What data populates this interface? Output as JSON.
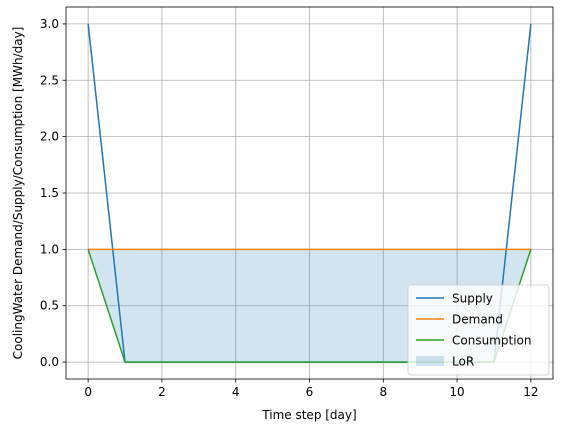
{
  "chart_data": {
    "type": "line",
    "xlabel": "Time step [day]",
    "ylabel": "CoolingWater Demand/Supply/Consumption [MWh/day]",
    "xlim": [
      -0.6,
      12.6
    ],
    "ylim": [
      -0.15,
      3.15
    ],
    "xticks": [
      0,
      2,
      4,
      6,
      8,
      10,
      12
    ],
    "yticks": [
      0.0,
      0.5,
      1.0,
      1.5,
      2.0,
      2.5,
      3.0
    ],
    "xtick_labels": [
      "0",
      "2",
      "4",
      "6",
      "8",
      "10",
      "12"
    ],
    "ytick_labels": [
      "0.0",
      "0.5",
      "1.0",
      "1.5",
      "2.0",
      "2.5",
      "3.0"
    ],
    "grid": true,
    "legend_position": "lower-right",
    "series": [
      {
        "name": "Supply",
        "color": "#1f77b4",
        "x": [
          0,
          1,
          2,
          3,
          4,
          5,
          6,
          7,
          8,
          9,
          10,
          11,
          12
        ],
        "y": [
          3,
          0,
          0,
          0,
          0,
          0,
          0,
          0,
          0,
          0,
          0,
          0,
          3
        ]
      },
      {
        "name": "Demand",
        "color": "#ff7f0e",
        "x": [
          0,
          1,
          2,
          3,
          4,
          5,
          6,
          7,
          8,
          9,
          10,
          11,
          12
        ],
        "y": [
          1,
          1,
          1,
          1,
          1,
          1,
          1,
          1,
          1,
          1,
          1,
          1,
          1
        ]
      },
      {
        "name": "Consumption",
        "color": "#2ca02c",
        "x": [
          0,
          1,
          2,
          3,
          4,
          5,
          6,
          7,
          8,
          9,
          10,
          11,
          12
        ],
        "y": [
          1,
          0,
          0,
          0,
          0,
          0,
          0,
          0,
          0,
          0,
          0,
          0,
          1
        ]
      }
    ],
    "fill": {
      "name": "LoR",
      "color": "#1f77b4",
      "opacity": 0.2,
      "x": [
        0,
        1,
        2,
        3,
        4,
        5,
        6,
        7,
        8,
        9,
        10,
        11,
        12
      ],
      "upper": [
        1,
        1,
        1,
        1,
        1,
        1,
        1,
        1,
        1,
        1,
        1,
        1,
        1
      ],
      "lower": [
        1,
        0,
        0,
        0,
        0,
        0,
        0,
        0,
        0,
        0,
        0,
        0,
        1
      ]
    }
  }
}
